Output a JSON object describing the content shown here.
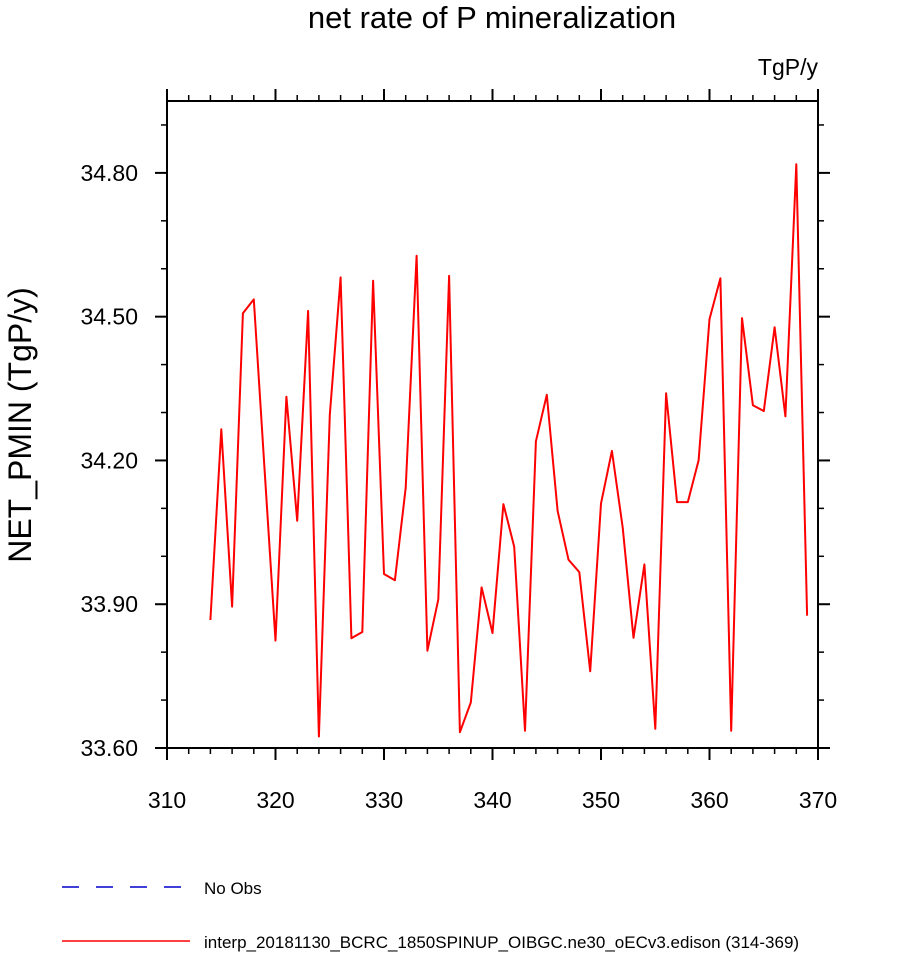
{
  "chart_data": {
    "type": "line",
    "title": "net rate of P mineralization",
    "units_label": "TgP/y",
    "xlabel": "",
    "ylabel": "NET_PMIN  (TgP/y)",
    "xlim": [
      310,
      370
    ],
    "ylim": [
      33.6,
      34.95
    ],
    "x_ticks": [
      310,
      320,
      330,
      340,
      350,
      360,
      370
    ],
    "x_tick_labels": [
      "310",
      "320",
      "330",
      "340",
      "350",
      "360",
      "370"
    ],
    "x_minor_ticks": [
      312,
      314,
      316,
      318,
      322,
      324,
      326,
      328,
      332,
      334,
      336,
      338,
      342,
      344,
      346,
      348,
      352,
      354,
      356,
      358,
      362,
      364,
      366,
      368
    ],
    "y_ticks": [
      33.6,
      33.9,
      34.2,
      34.5,
      34.8
    ],
    "y_tick_labels": [
      "33.60",
      "33.90",
      "34.20",
      "34.50",
      "34.80"
    ],
    "y_minor_ticks": [
      33.7,
      33.8,
      34.0,
      34.1,
      34.3,
      34.4,
      34.6,
      34.7,
      34.9
    ],
    "grid": false,
    "legend_position": "bottom-left, below plot",
    "series": [
      {
        "name": "No Obs",
        "color": "#0000cc",
        "style": "dashed",
        "x": [],
        "values": []
      },
      {
        "name": "interp_20181130_BCRC_1850SPINUP_OIBGC.ne30_oECv3.edison (314-369)",
        "color": "#ff0000",
        "style": "solid",
        "x": [
          314,
          315,
          316,
          317,
          318,
          319,
          320,
          321,
          322,
          323,
          324,
          325,
          326,
          327,
          328,
          329,
          330,
          331,
          332,
          333,
          334,
          335,
          336,
          337,
          338,
          339,
          340,
          341,
          342,
          343,
          344,
          345,
          346,
          347,
          348,
          349,
          350,
          351,
          352,
          353,
          354,
          355,
          356,
          357,
          358,
          359,
          360,
          361,
          362,
          363,
          364,
          365,
          366,
          367,
          368,
          369
        ],
        "values": [
          33.867,
          34.265,
          33.895,
          34.507,
          34.536,
          34.18,
          33.824,
          34.333,
          34.074,
          34.512,
          33.624,
          34.295,
          34.582,
          33.829,
          33.842,
          34.575,
          33.963,
          33.95,
          34.143,
          34.627,
          33.803,
          33.91,
          34.585,
          33.633,
          33.695,
          33.935,
          33.84,
          34.109,
          34.02,
          33.636,
          34.24,
          34.337,
          34.095,
          33.993,
          33.967,
          33.76,
          34.11,
          34.22,
          34.06,
          33.83,
          33.983,
          33.64,
          34.34,
          34.113,
          34.113,
          34.2,
          34.495,
          34.58,
          33.636,
          34.497,
          34.315,
          34.303,
          34.478,
          34.292,
          34.818,
          33.876
        ]
      }
    ]
  }
}
